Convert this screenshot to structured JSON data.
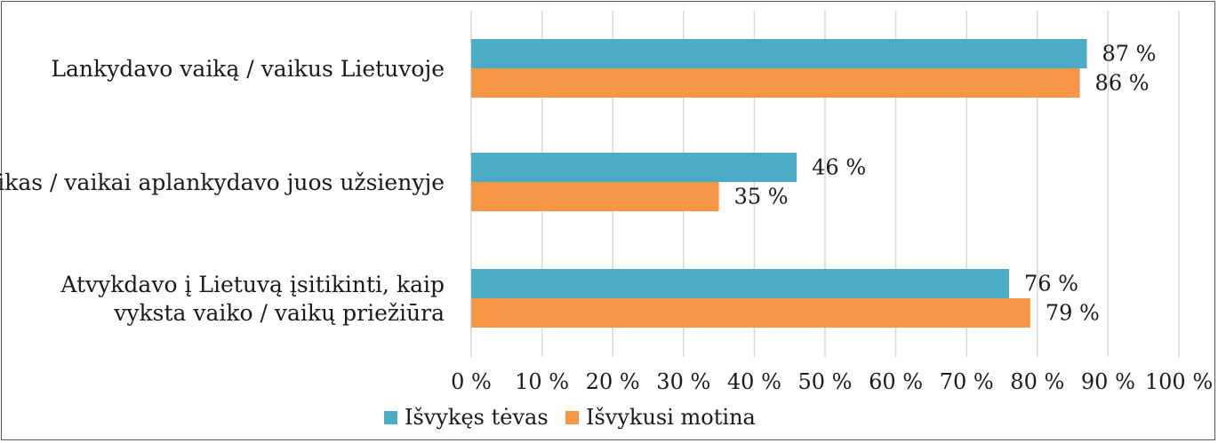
{
  "chart_data": {
    "type": "bar",
    "orientation": "horizontal",
    "categories": [
      [
        "Lankydavo vaiką / vaikus Lietuvoje"
      ],
      [
        "Vaikas / vaikai aplankydavo juos užsienyje"
      ],
      [
        "Atvykdavo į Lietuvą įsitikinti, kaip",
        "vyksta vaiko / vaikų priežiūra"
      ]
    ],
    "series": [
      {
        "name": "Išvykęs tėvas",
        "color": "#4bacc6",
        "values": [
          87,
          46,
          76
        ],
        "labels": [
          "87 %",
          "46 %",
          "76 %"
        ]
      },
      {
        "name": "Išvykusi motina",
        "color": "#f79646",
        "values": [
          86,
          35,
          79
        ],
        "labels": [
          "86 %",
          "35 %",
          "79 %"
        ]
      }
    ],
    "xlim": [
      0,
      100
    ],
    "xticks": [
      0,
      10,
      20,
      30,
      40,
      50,
      60,
      70,
      80,
      90,
      100
    ],
    "xtick_labels": [
      "0 %",
      "10 %",
      "20 %",
      "30 %",
      "40 %",
      "50 %",
      "60 %",
      "70 %",
      "80 %",
      "90 %",
      "100 %"
    ],
    "grid": true,
    "legend": "bottom-left"
  }
}
